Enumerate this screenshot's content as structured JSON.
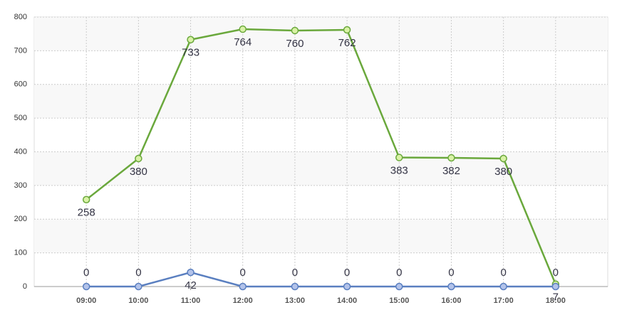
{
  "chart_data": {
    "type": "line",
    "categories": [
      "09:00",
      "10:00",
      "11:00",
      "12:00",
      "13:00",
      "14:00",
      "15:00",
      "16:00",
      "17:00",
      "18:00"
    ],
    "series": [
      {
        "color": "#6aa83c",
        "marker_fill": "#d9f2a6",
        "values": [
          258,
          380,
          733,
          764,
          760,
          762,
          383,
          382,
          380,
          7
        ]
      },
      {
        "color": "#5a7fc0",
        "marker_fill": "#b3c3ea",
        "values": [
          0,
          0,
          42,
          0,
          0,
          0,
          0,
          0,
          0,
          0
        ]
      }
    ],
    "ylim": [
      0,
      800
    ],
    "yticks": [
      0,
      100,
      200,
      300,
      400,
      500,
      600,
      700,
      800
    ],
    "grid": true
  }
}
